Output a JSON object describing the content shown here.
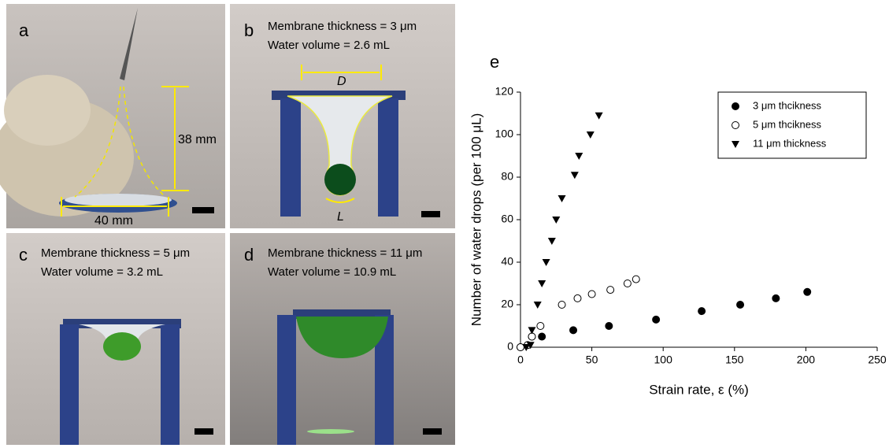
{
  "panels": [
    {
      "label": "a",
      "annotations": [
        "38 mm",
        "40 mm"
      ]
    },
    {
      "label": "b",
      "lines": [
        "Membrane thickness = 3 μm",
        "Water volume = 2.6 mL"
      ],
      "annotations": [
        "D",
        "L"
      ]
    },
    {
      "label": "c",
      "lines": [
        "Membrane thickness = 5 μm",
        "Water volume = 3.2 mL"
      ]
    },
    {
      "label": "d",
      "lines": [
        "Membrane thickness = 11 μm",
        "Water volume = 10.9 mL"
      ]
    }
  ],
  "chart_data": {
    "type": "scatter",
    "panel_label": "e",
    "x_label": "Strain rate, ε (%)",
    "y_label": "Number of water drops (per 100 μL)",
    "xlim": [
      0,
      250
    ],
    "xticks": [
      0,
      50,
      100,
      150,
      200,
      250
    ],
    "ylim": [
      0,
      120
    ],
    "yticks": [
      0,
      20,
      40,
      60,
      80,
      100,
      120
    ],
    "legend": "upper right",
    "series": [
      {
        "name": "3 μm thcikness",
        "marker": "circle",
        "color": "#000000",
        "x": [
          0,
          8,
          15,
          37,
          62,
          95,
          127,
          154,
          179,
          201
        ],
        "values": [
          0,
          5,
          5,
          8,
          10,
          13,
          17,
          20,
          23,
          26
        ]
      },
      {
        "name": "5 μm thcikness",
        "marker": "open-circle",
        "color": "#000000",
        "x": [
          0,
          5,
          8,
          14,
          29,
          40,
          50,
          63,
          75,
          81
        ],
        "values": [
          0,
          1,
          5,
          10,
          20,
          23,
          25,
          27,
          30,
          32
        ]
      },
      {
        "name": "11 μm thickness",
        "marker": "triangle-down",
        "color": "#000000",
        "x": [
          4,
          7,
          8,
          12,
          15,
          18,
          22,
          25,
          29,
          38,
          41,
          49,
          55
        ],
        "values": [
          0,
          1,
          8,
          20,
          30,
          40,
          50,
          60,
          70,
          81,
          90,
          100,
          109
        ]
      }
    ]
  }
}
